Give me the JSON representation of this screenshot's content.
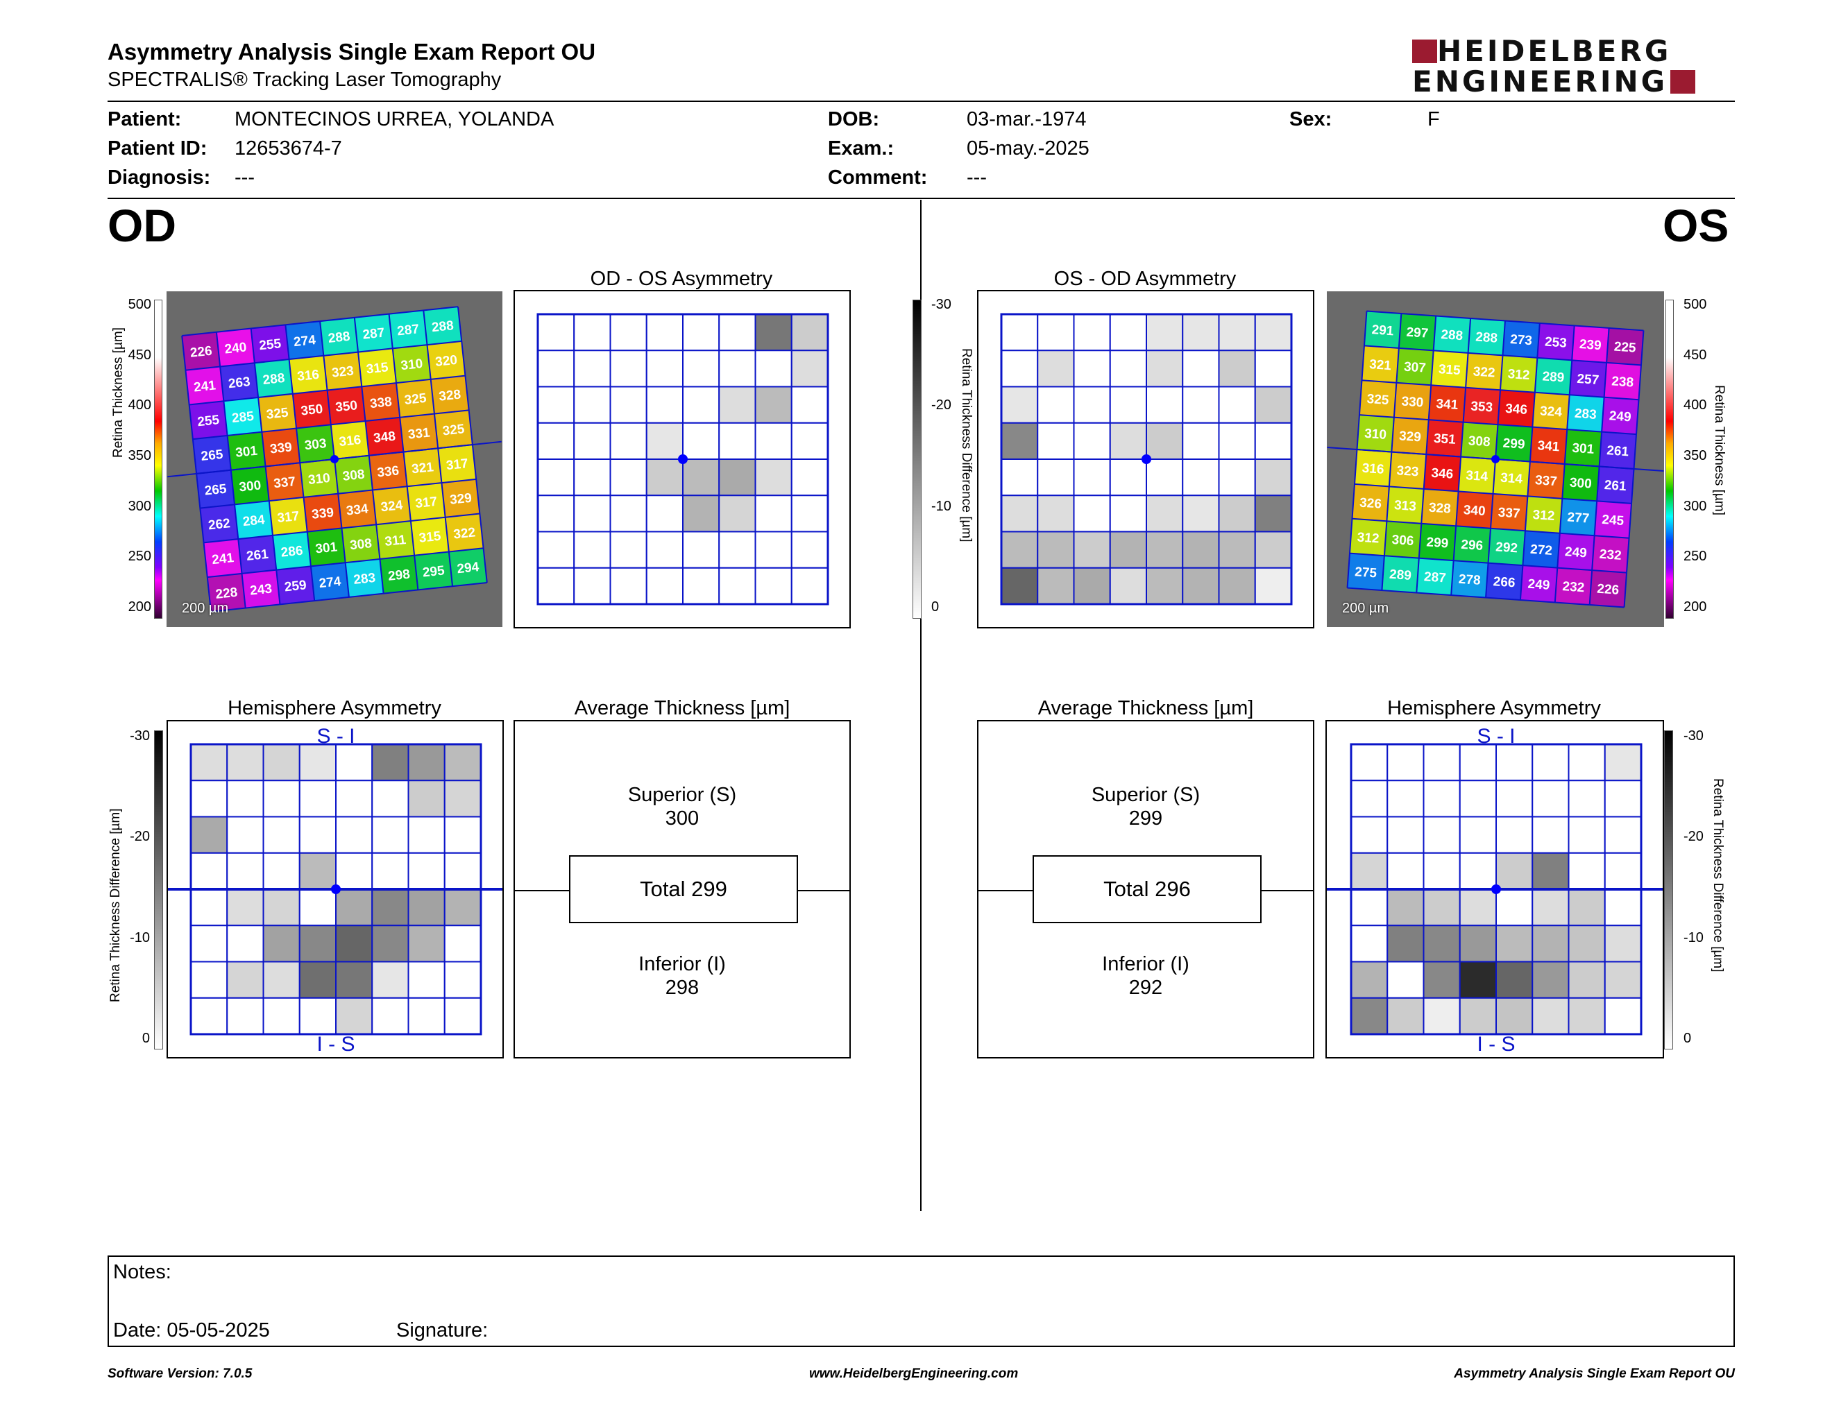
{
  "header": {
    "title": "Asymmetry Analysis Single Exam Report OU",
    "subtitle": "SPECTRALIS® Tracking Laser Tomography",
    "logo_line1": "HEIDELBERG",
    "logo_line2": "ENGINEERING",
    "brand_color": "#9b1b30"
  },
  "patient": {
    "patient_label": "Patient:",
    "patient_value": "MONTECINOS URREA, YOLANDA",
    "id_label": "Patient ID:",
    "id_value": "12653674-7",
    "diagnosis_label": "Diagnosis:",
    "diagnosis_value": "---",
    "dob_label": "DOB:",
    "dob_value": "03-mar.-1974",
    "exam_label": "Exam.:",
    "exam_value": "05-may.-2025",
    "comment_label": "Comment:",
    "comment_value": "---",
    "sex_label": "Sex:",
    "sex_value": "F"
  },
  "od": {
    "eye_label": "OD",
    "asym_title": "OD - OS Asymmetry",
    "hemi_title": "Hemisphere Asymmetry",
    "hemi_top": "S - I",
    "hemi_bottom": "I - S",
    "avg_title": "Average Thickness [µm]",
    "sup_label": "Superior (S)",
    "sup_value": "300",
    "total_label": "Total 299",
    "inf_label": "Inferior (I)",
    "inf_value": "298",
    "scale_label": "200 µm",
    "thickness_values": [
      [
        226,
        240,
        255,
        274,
        288,
        287,
        287,
        288
      ],
      [
        241,
        263,
        288,
        316,
        323,
        315,
        310,
        320
      ],
      [
        255,
        285,
        325,
        350,
        350,
        338,
        325,
        328
      ],
      [
        265,
        301,
        339,
        303,
        316,
        348,
        331,
        325
      ],
      [
        265,
        300,
        337,
        310,
        308,
        336,
        321,
        317
      ],
      [
        262,
        284,
        317,
        339,
        334,
        324,
        317,
        329
      ],
      [
        241,
        261,
        286,
        301,
        308,
        311,
        315,
        322
      ],
      [
        228,
        243,
        259,
        274,
        283,
        298,
        295,
        294
      ]
    ],
    "asym_grid": [
      [
        0,
        0,
        0,
        0,
        0,
        0,
        16,
        6
      ],
      [
        0,
        0,
        0,
        0,
        0,
        0,
        0,
        4
      ],
      [
        0,
        0,
        0,
        0,
        0,
        4,
        8,
        0
      ],
      [
        0,
        0,
        0,
        3,
        0,
        0,
        0,
        0
      ],
      [
        0,
        0,
        0,
        6,
        8,
        10,
        4,
        0
      ],
      [
        0,
        0,
        0,
        0,
        9,
        5,
        0,
        0
      ],
      [
        0,
        0,
        0,
        0,
        0,
        0,
        0,
        0
      ],
      [
        0,
        0,
        0,
        0,
        0,
        0,
        0,
        0
      ]
    ],
    "hemi_grid": [
      [
        4,
        4,
        5,
        3,
        0,
        15,
        12,
        8
      ],
      [
        0,
        0,
        0,
        0,
        0,
        0,
        6,
        5
      ],
      [
        10,
        0,
        0,
        0,
        0,
        0,
        0,
        0
      ],
      [
        0,
        0,
        0,
        8,
        0,
        0,
        0,
        0
      ],
      [
        0,
        4,
        5,
        0,
        10,
        14,
        11,
        9
      ],
      [
        0,
        0,
        11,
        14,
        18,
        14,
        9,
        0
      ],
      [
        0,
        5,
        4,
        17,
        16,
        3,
        0,
        0
      ],
      [
        0,
        0,
        0,
        0,
        5,
        0,
        0,
        0
      ]
    ]
  },
  "os": {
    "eye_label": "OS",
    "asym_title": "OS - OD Asymmetry",
    "hemi_title": "Hemisphere Asymmetry",
    "hemi_top": "S - I",
    "hemi_bottom": "I - S",
    "avg_title": "Average Thickness [µm]",
    "sup_label": "Superior (S)",
    "sup_value": "299",
    "total_label": "Total 296",
    "inf_label": "Inferior (I)",
    "inf_value": "292",
    "scale_label": "200 µm",
    "thickness_values": [
      [
        291,
        297,
        288,
        288,
        273,
        253,
        239,
        225
      ],
      [
        321,
        307,
        315,
        322,
        312,
        289,
        257,
        238
      ],
      [
        325,
        330,
        341,
        353,
        346,
        324,
        283,
        249
      ],
      [
        310,
        329,
        351,
        308,
        299,
        341,
        301,
        261
      ],
      [
        316,
        323,
        346,
        314,
        314,
        337,
        300,
        261
      ],
      [
        326,
        313,
        328,
        340,
        337,
        312,
        277,
        245
      ],
      [
        312,
        306,
        299,
        296,
        292,
        272,
        249,
        232
      ],
      [
        275,
        289,
        287,
        278,
        266,
        249,
        232,
        226
      ]
    ],
    "asym_grid": [
      [
        0,
        0,
        0,
        0,
        3,
        3,
        3,
        3
      ],
      [
        0,
        4,
        0,
        0,
        4,
        0,
        6,
        0
      ],
      [
        3,
        0,
        0,
        0,
        0,
        0,
        0,
        6
      ],
      [
        14,
        0,
        0,
        4,
        6,
        0,
        0,
        0
      ],
      [
        0,
        0,
        0,
        0,
        0,
        0,
        0,
        5
      ],
      [
        4,
        4,
        0,
        0,
        4,
        3,
        6,
        15
      ],
      [
        8,
        8,
        6,
        9,
        8,
        9,
        8,
        6
      ],
      [
        18,
        8,
        10,
        4,
        8,
        9,
        9,
        2
      ]
    ],
    "hemi_grid": [
      [
        0,
        0,
        0,
        0,
        0,
        0,
        0,
        3
      ],
      [
        0,
        0,
        0,
        0,
        0,
        0,
        0,
        0
      ],
      [
        0,
        0,
        0,
        0,
        0,
        0,
        0,
        0
      ],
      [
        5,
        0,
        0,
        0,
        6,
        15,
        0,
        0
      ],
      [
        0,
        8,
        6,
        4,
        0,
        4,
        6,
        0
      ],
      [
        0,
        15,
        14,
        12,
        8,
        9,
        7,
        4
      ],
      [
        9,
        0,
        14,
        25,
        18,
        12,
        6,
        5
      ],
      [
        14,
        6,
        2,
        6,
        7,
        4,
        5,
        0
      ]
    ]
  },
  "scales": {
    "thickness_axis_label": "Retina  Thickness [µm]",
    "thickness_ticks": [
      "500",
      "450",
      "400",
      "350",
      "300",
      "250",
      "200"
    ],
    "diff_axis_label": "Retina Thickness Difference [µm]",
    "diff_ticks": [
      "-30",
      "-20",
      "-10",
      "0"
    ]
  },
  "notes": {
    "notes_label": "Notes:",
    "date_label": "Date: 05-05-2025",
    "signature_label": "Signature:"
  },
  "footer": {
    "version": "Software Version: 7.0.5",
    "url": "www.HeidelbergEngineering.com",
    "report": "Asymmetry Analysis Single Exam Report OU"
  },
  "colors": {
    "grid_blue": "#0a14c8",
    "fovea_dot": "#0000ff"
  }
}
